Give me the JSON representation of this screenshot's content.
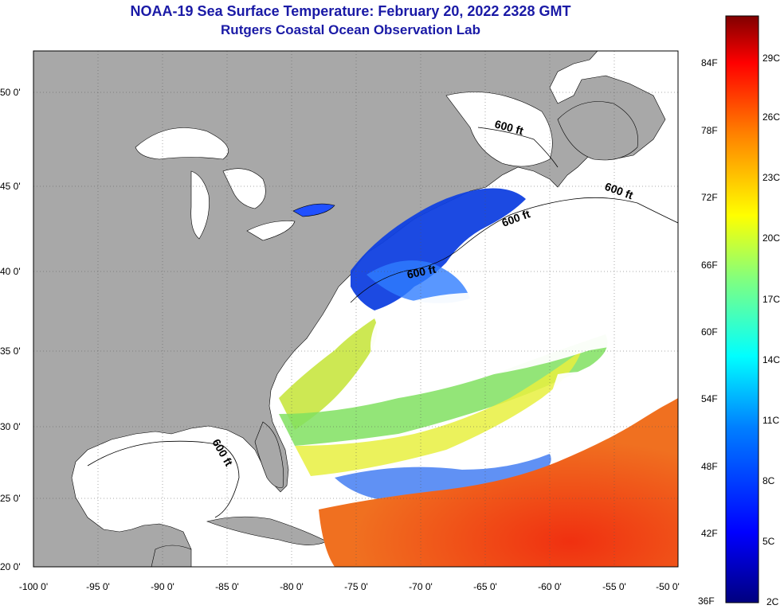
{
  "title": "NOAA-19 Sea Surface Temperature:  February 20, 2022 2328 GMT",
  "subtitle": "Rutgers Coastal Ocean Observation Lab",
  "latitude_ticks": [
    "50 0'",
    "45 0'",
    "40 0'",
    "35 0'",
    "30 0'",
    "25 0'",
    "20 0'"
  ],
  "longitude_ticks": [
    "-100 0'",
    "-95 0'",
    "-90 0'",
    "-85 0'",
    "-80 0'",
    "-75 0'",
    "-70 0'",
    "-65 0'",
    "-60 0'",
    "-55 0'",
    "-50 0'"
  ],
  "contour_labels": [
    "600 ft",
    "600 ft",
    "600 ft",
    "600 ft",
    "600 ft"
  ],
  "colorbar": {
    "fahrenheit": [
      "84F",
      "78F",
      "72F",
      "66F",
      "60F",
      "54F",
      "48F",
      "42F",
      "36F"
    ],
    "celsius": [
      "29C",
      "26C",
      "23C",
      "20C",
      "17C",
      "14C",
      "11C",
      "8C",
      "5C",
      "2C"
    ]
  },
  "colors": {
    "land": "#a8a8a8",
    "cloud": "#ffffff",
    "title": "#1a1aa6"
  }
}
